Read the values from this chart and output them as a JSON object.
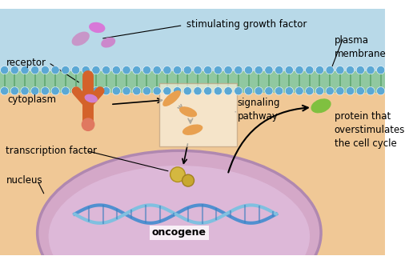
{
  "bg_sky": "#b8d9e8",
  "bg_cytoplasm": "#f0c896",
  "bg_nucleus": "#d4a8c8",
  "membrane_color": "#7ec8c8",
  "bead_color": "#5ba8d4",
  "receptor_color": "#d4622a",
  "growth_factor_color": "#c896c8",
  "signaling_color": "#e8a050",
  "transcription_factor_color": "#c8a030",
  "dna_color1": "#5090d0",
  "dna_color2": "#80c0e0",
  "green_protein_color": "#80c040",
  "nucleus_border": "#b088b0",
  "labels": {
    "stimulating_growth_factor": "stimulating growth factor",
    "receptor": "receptor",
    "plasma_membrane": "plasma\nmembrane",
    "cytoplasm": "cytoplasm",
    "signaling_pathway": "signaling\npathway",
    "transcription_factor": "transcription factor",
    "nucleus": "nucleus",
    "oncogene": "oncogene",
    "protein_overstimulates": "protein that\noverstimulates\nthe cell cycle"
  },
  "figsize": [
    5.16,
    3.3
  ],
  "dpi": 100
}
